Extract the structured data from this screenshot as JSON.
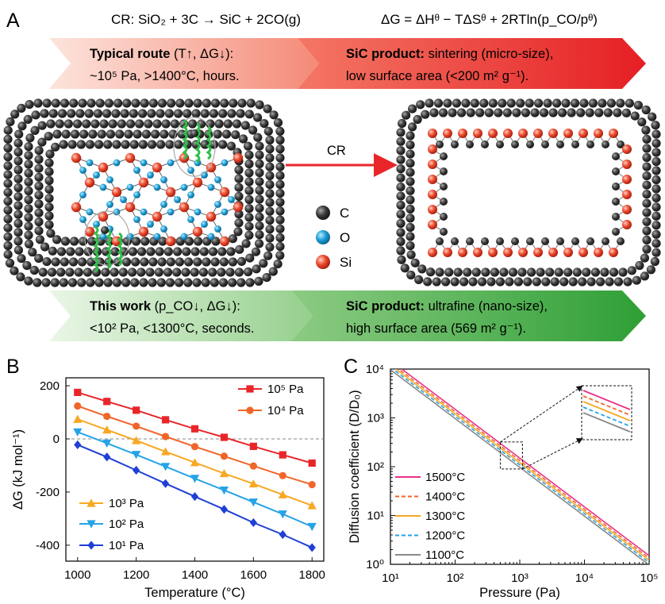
{
  "panel_labels": {
    "a": "A",
    "b": "B",
    "c": "C"
  },
  "panel_a": {
    "equation_left": "CR: SiO₂ + 3C → SiC + 2CO(g)",
    "equation_right": "ΔG = ΔHᶿ − TΔSᶿ + 2RTln(p_CO/pᶿ)",
    "typical_route": {
      "title": "Typical route",
      "title_rest": " (T↑, ΔG↓):",
      "line2": "~10⁵ Pa, >1400°C, hours."
    },
    "typical_product": {
      "title": "SiC product:",
      "title_rest": " sintering (micro-size),",
      "line2": "low surface area (<200 m² g⁻¹)."
    },
    "this_work": {
      "title": "This work",
      "title_rest": " (p_CO↓, ΔG↓):",
      "line2": "<10² Pa, <1300°C, seconds."
    },
    "this_product": {
      "title": "SiC product:",
      "title_rest": " ultrafine (nano-size),",
      "line2": "high surface area (569 m² g⁻¹)."
    },
    "arrow_label": "CR",
    "atom_legend": [
      {
        "symbol": "C",
        "color": "#3a3a3a"
      },
      {
        "symbol": "O",
        "color": "#1ea0d6"
      },
      {
        "symbol": "Si",
        "color": "#e8442a"
      }
    ],
    "colors": {
      "red_band": "#e8262a",
      "green_band": "#3aa53a"
    }
  },
  "chart_data": [
    {
      "type": "line",
      "panel": "B",
      "xlabel": "Temperature (°C)",
      "ylabel": "ΔG (kJ mol⁻¹)",
      "xlim": [
        960,
        1840
      ],
      "ylim": [
        -460,
        230
      ],
      "xticks": [
        1000,
        1200,
        1400,
        1600,
        1800
      ],
      "yticks": [
        -400,
        -200,
        0,
        200
      ],
      "zero_line": true,
      "x": [
        1000,
        1100,
        1200,
        1300,
        1400,
        1500,
        1600,
        1700,
        1800
      ],
      "series": [
        {
          "name": "10⁵ Pa",
          "color": "#e8262a",
          "marker": "square",
          "values": [
            175,
            141,
            108,
            72,
            38,
            6,
            -28,
            -60,
            -91
          ]
        },
        {
          "name": "10⁴ Pa",
          "color": "#f0662a",
          "marker": "circle",
          "values": [
            124,
            85,
            48,
            9,
            -29,
            -65,
            -102,
            -138,
            -172
          ]
        },
        {
          "name": "10³ Pa",
          "color": "#f7a823",
          "marker": "triangle-up",
          "values": [
            74,
            34,
            -6,
            -48,
            -89,
            -130,
            -169,
            -210,
            -251
          ]
        },
        {
          "name": "10² Pa",
          "color": "#26a3e8",
          "marker": "triangle-down",
          "values": [
            26,
            -16,
            -59,
            -104,
            -149,
            -193,
            -238,
            -283,
            -330
          ]
        },
        {
          "name": "10¹ Pa",
          "color": "#1f3fd6",
          "marker": "diamond",
          "values": [
            -22,
            -68,
            -118,
            -168,
            -217,
            -265,
            -315,
            -360,
            -409
          ]
        }
      ]
    },
    {
      "type": "line",
      "panel": "C",
      "xlabel": "Pressure (Pa)",
      "ylabel": "Diffusion coefficient (D/D₀)",
      "x_scale": "log",
      "y_scale": "log",
      "xlim": [
        10,
        100000
      ],
      "ylim": [
        1,
        10000
      ],
      "xticks": [
        "10¹",
        "10²",
        "10³",
        "10⁴",
        "10⁵"
      ],
      "yticks": [
        "10⁰",
        "10¹",
        "10²",
        "10³",
        "10⁴"
      ],
      "x": [
        10,
        100000
      ],
      "series": [
        {
          "name": "1500°C",
          "color": "#e8308a",
          "dash": "solid",
          "values": [
            15000,
            1.5
          ]
        },
        {
          "name": "1400°C",
          "color": "#f0662a",
          "dash": "dashed",
          "values": [
            13400,
            1.34
          ]
        },
        {
          "name": "1300°C",
          "color": "#f7a823",
          "dash": "solid",
          "values": [
            12100,
            1.21
          ]
        },
        {
          "name": "1200°C",
          "color": "#26a3e8",
          "dash": "dashed",
          "values": [
            10900,
            1.09
          ]
        },
        {
          "name": "1100°C",
          "color": "#8a8a8a",
          "dash": "solid",
          "values": [
            9700,
            0.97
          ]
        }
      ],
      "zoom_region": {
        "x": [
          500,
          1100
        ],
        "y": [
          90,
          320
        ]
      }
    }
  ]
}
